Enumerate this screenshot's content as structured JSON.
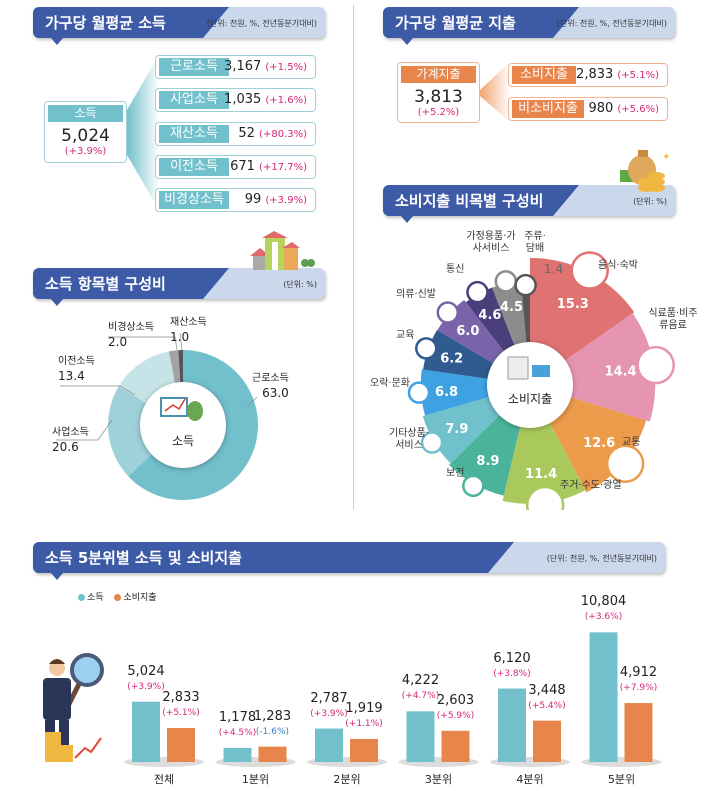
{
  "income_panel": {
    "title": "가구당 월평균 소득",
    "unit": "(단위: 천원, %, 전년동분기대비)",
    "total": {
      "label": "소득",
      "value": "5,024",
      "change": "(+3.9%)"
    },
    "items": [
      {
        "label": "근로소득",
        "value": "3,167",
        "change": "(+1.5%)"
      },
      {
        "label": "사업소득",
        "value": "1,035",
        "change": "(+1.6%)"
      },
      {
        "label": "재산소득",
        "value": "52",
        "change": "(+80.3%)"
      },
      {
        "label": "이전소득",
        "value": "671",
        "change": "(+17.7%)"
      },
      {
        "label": "비경상소득",
        "value": "99",
        "change": "(+3.9%)"
      }
    ]
  },
  "expense_panel": {
    "title": "가구당 월평균 지출",
    "unit": "(단위: 천원, %, 전년동분기대비)",
    "total": {
      "label": "가계지출",
      "value": "3,813",
      "change": "(+5.2%)"
    },
    "items": [
      {
        "label": "소비지출",
        "value": "2,833",
        "change": "(+5.1%)"
      },
      {
        "label": "비소비지출",
        "value": "980",
        "change": "(+5.6%)"
      }
    ]
  },
  "colors": {
    "header": "#3c5aa5",
    "teal": "#72c0cc",
    "orange": "#e8854a",
    "change": "#d6267a",
    "negative_change": "#3a7cc4"
  },
  "chart_data": [
    {
      "type": "pie",
      "title": "소득 항목별 구성비",
      "unit": "(단위: %)",
      "center_label": "소득",
      "slices": [
        {
          "label": "근로소득",
          "value": 63.0,
          "display": "63.0",
          "color": "#72c0cc"
        },
        {
          "label": "사업소득",
          "value": 20.6,
          "display": "20.6",
          "color": "#9fd1d9"
        },
        {
          "label": "이전소득",
          "value": 13.4,
          "display": "13.4",
          "color": "#c6e4e8"
        },
        {
          "label": "비경상소득",
          "value": 2.0,
          "display": "2.0",
          "color": "#a3a3a3"
        },
        {
          "label": "재산소득",
          "value": 1.0,
          "display": "1.0",
          "color": "#555555"
        }
      ]
    },
    {
      "type": "pie",
      "title": "소비지출 비목별 구성비",
      "unit": "(단위: %)",
      "center_label": "소비지출",
      "slices": [
        {
          "label": "음식·숙박",
          "value": 15.3,
          "display": "15.3",
          "color": "#e07272"
        },
        {
          "label": "식료품·비주류음료",
          "value": 14.4,
          "display": "14.4",
          "color": "#e595b2"
        },
        {
          "label": "교통",
          "value": 12.6,
          "display": "12.6",
          "color": "#ec9b4b"
        },
        {
          "label": "주거·수도·광열",
          "value": 11.4,
          "display": "11.4",
          "color": "#a9c95c"
        },
        {
          "label": "보건",
          "value": 8.9,
          "display": "8.9",
          "color": "#4ab39b"
        },
        {
          "label": "기타상품·서비스",
          "value": 7.9,
          "display": "7.9",
          "color": "#70c1cc"
        },
        {
          "label": "오락·문화",
          "value": 6.8,
          "display": "6.8",
          "color": "#3ea2e2"
        },
        {
          "label": "교육",
          "value": 6.2,
          "display": "6.2",
          "color": "#2f5b90"
        },
        {
          "label": "의류·신발",
          "value": 6.0,
          "display": "6.0",
          "color": "#7a63a9"
        },
        {
          "label": "통신",
          "value": 4.6,
          "display": "4.6",
          "color": "#4a3f7b"
        },
        {
          "label": "가정용품·가사서비스",
          "value": 4.5,
          "display": "4.5",
          "color": "#8c8c8c"
        },
        {
          "label": "주류·담배",
          "value": 1.4,
          "display": "1.4",
          "color": "#565656"
        }
      ]
    },
    {
      "type": "bar",
      "title": "소득 5분위별 소득 및 소비지출",
      "unit": "(단위: 천원, %, 전년동분기대비)",
      "categories": [
        "전체",
        "1분위",
        "2분위",
        "3분위",
        "4분위",
        "5분위"
      ],
      "series": [
        {
          "name": "소득",
          "color": "#72c0cc",
          "values": [
            5024,
            1178,
            2787,
            4222,
            6120,
            10804
          ],
          "labels": [
            "5,024",
            "1,178",
            "2,787",
            "4,222",
            "6,120",
            "10,804"
          ],
          "changes": [
            "(+3.9%)",
            "(+4.5%)",
            "(+3.9%)",
            "(+4.7%)",
            "(+3.8%)",
            "(+3.6%)"
          ]
        },
        {
          "name": "소비지출",
          "color": "#e8854a",
          "values": [
            2833,
            1283,
            1919,
            2603,
            3448,
            4912
          ],
          "labels": [
            "2,833",
            "1,283",
            "1,919",
            "2,603",
            "3,448",
            "4,912"
          ],
          "changes": [
            "(+5.1%)",
            "(-1.6%)",
            "(+1.1%)",
            "(+5.9%)",
            "(+5.4%)",
            "(+7.9%)"
          ]
        }
      ]
    }
  ]
}
